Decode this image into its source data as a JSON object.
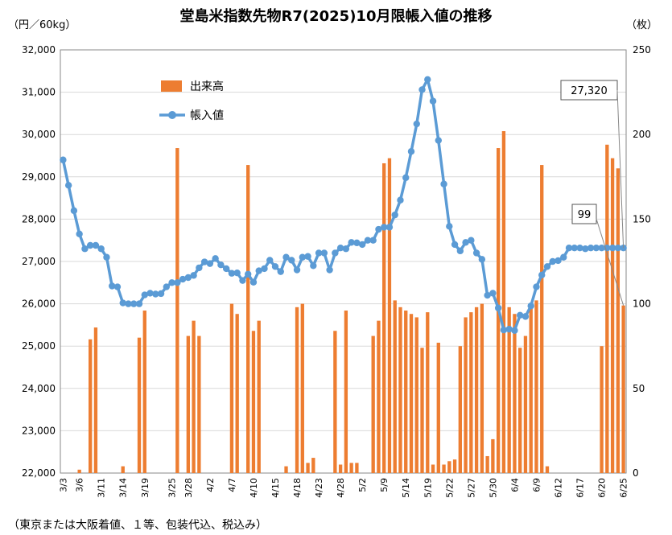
{
  "chart_data": {
    "type": "bar+line",
    "title": "堂島米指数先物R7(2025)10月限帳入値の推移",
    "left_axis_label": "（円／60kg）",
    "right_axis_label": "（枚）",
    "note": "（東京または大阪着値、１等、包装代込、税込み）",
    "legend": [
      "出来高",
      "帳入値"
    ],
    "legend_position": "top-left",
    "grid": true,
    "ylim_left": [
      22000,
      32000
    ],
    "ylim_right": [
      0,
      250
    ],
    "yticks_left": [
      "32,000",
      "31,000",
      "30,000",
      "29,000",
      "28,000",
      "27,000",
      "26,000",
      "25,000",
      "24,000",
      "23,000",
      "22,000"
    ],
    "yticks_right": [
      "250",
      "200",
      "150",
      "100",
      "50",
      "0"
    ],
    "xtick_labels": [
      "3/3",
      "3/6",
      "3/11",
      "3/14",
      "3/19",
      "3/25",
      "3/28",
      "4/2",
      "4/7",
      "4/10",
      "4/15",
      "4/18",
      "4/23",
      "4/28",
      "5/2",
      "5/9",
      "5/14",
      "5/19",
      "5/22",
      "5/27",
      "5/30",
      "6/4",
      "6/9",
      "6/12",
      "6/17",
      "6/20",
      "6/25"
    ],
    "xtick_index": [
      0,
      3,
      7,
      11,
      15,
      20,
      23,
      27,
      31,
      35,
      39,
      43,
      47,
      51,
      55,
      59,
      63,
      67,
      71,
      75,
      79,
      83,
      87,
      91,
      95,
      99,
      103
    ],
    "series": [
      {
        "name": "出来高",
        "color": "#ED7D31",
        "axis": "right",
        "values": [
          0,
          0,
          0,
          2,
          0,
          79,
          86,
          0,
          0,
          0,
          0,
          4,
          0,
          0,
          80,
          96,
          0,
          0,
          0,
          0,
          0,
          192,
          0,
          81,
          90,
          81,
          0,
          0,
          0,
          0,
          0,
          100,
          94,
          0,
          182,
          84,
          90,
          0,
          0,
          0,
          0,
          4,
          0,
          98,
          100,
          6,
          9,
          0,
          0,
          0,
          84,
          5,
          96,
          6,
          6,
          0,
          0,
          81,
          90,
          183,
          186,
          102,
          98,
          96,
          94,
          92,
          74,
          95,
          5,
          77,
          5,
          7,
          8,
          75,
          92,
          95,
          98,
          100,
          10,
          20,
          192,
          202,
          98,
          94,
          74,
          81,
          100,
          102,
          182,
          4,
          0,
          0,
          0,
          0,
          0,
          0,
          0,
          0,
          0,
          75,
          194,
          186,
          180,
          99
        ]
      },
      {
        "name": "帳入値",
        "color": "#5B9BD5",
        "axis": "left",
        "values": [
          29400,
          28800,
          28200,
          27650,
          27300,
          27380,
          27380,
          27300,
          27100,
          26420,
          26400,
          26020,
          26000,
          26000,
          26000,
          26210,
          26250,
          26230,
          26240,
          26400,
          26500,
          26500,
          26580,
          26620,
          26670,
          26850,
          26990,
          26950,
          27070,
          26920,
          26830,
          26720,
          26730,
          26550,
          26700,
          26510,
          26780,
          26830,
          27030,
          26880,
          26760,
          27100,
          27030,
          26800,
          27100,
          27120,
          26900,
          27200,
          27200,
          26800,
          27200,
          27320,
          27300,
          27450,
          27440,
          27400,
          27500,
          27500,
          27760,
          27810,
          27810,
          28100,
          28450,
          28980,
          29600,
          30250,
          31060,
          31300,
          30790,
          29860,
          28830,
          27830,
          27400,
          27250,
          27450,
          27500,
          27200,
          27050,
          26200,
          26250,
          25900,
          25380,
          25400,
          25370,
          25730,
          25700,
          25950,
          26400,
          26680,
          26880,
          27000,
          27020,
          27100,
          27320,
          27320,
          27320,
          27300,
          27320,
          27320,
          27320,
          27320,
          27320,
          27320,
          27320
        ]
      }
    ],
    "annotations": [
      "27,320",
      "99"
    ]
  }
}
